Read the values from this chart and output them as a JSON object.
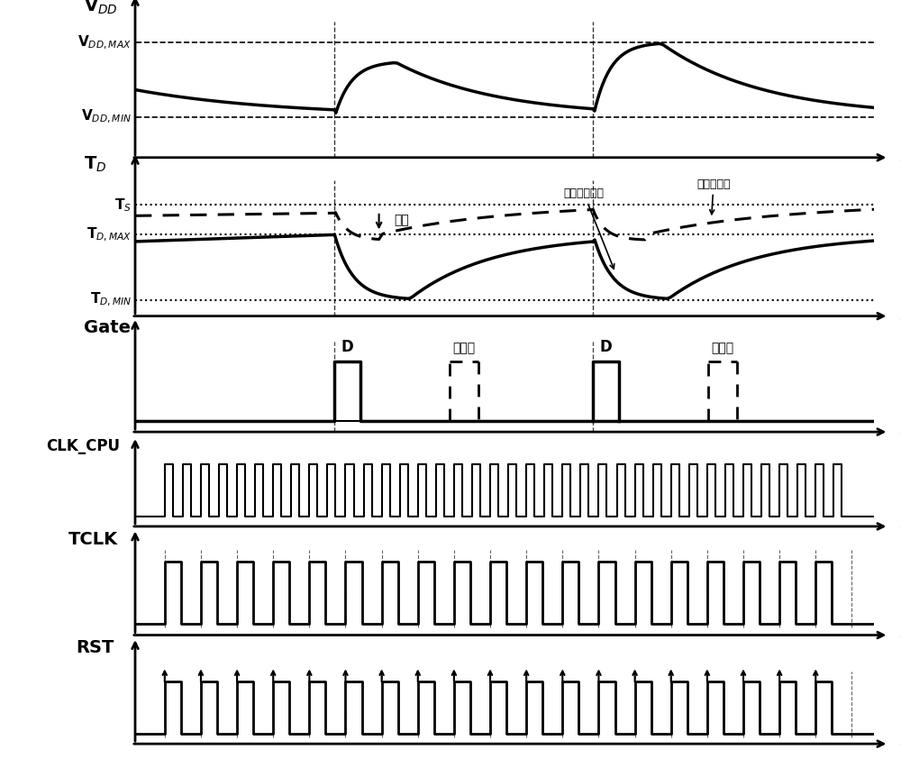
{
  "bg_color": "#ffffff",
  "panel1_ylabel": "V$_{DD}$",
  "panel1_vdd_max_label": "V$_{DD, MAX}$",
  "panel1_vdd_min_label": "V$_{DD, MIN}$",
  "panel2_ylabel": "T$_D$",
  "panel2_ts_label": "T$_S$",
  "panel2_tdmax_label": "T$_{D, MAX}$",
  "panel2_tdmin_label": "T$_{D, MIN}$",
  "panel2_margin_label": "裕度",
  "panel2_critical_label": "关键路径延迟",
  "panel2_delay_label": "延迟线延迟",
  "panel3_ylabel": "Gate",
  "panel3_d_label": "D",
  "panel3_cross_label": "跨周期",
  "panel4_ylabel": "CLK_CPU",
  "panel5_ylabel": "TCLK",
  "panel6_ylabel": "RST",
  "t_label": "t",
  "label_fs": 13,
  "ylabel_fs": 14,
  "annot_fs": 10
}
